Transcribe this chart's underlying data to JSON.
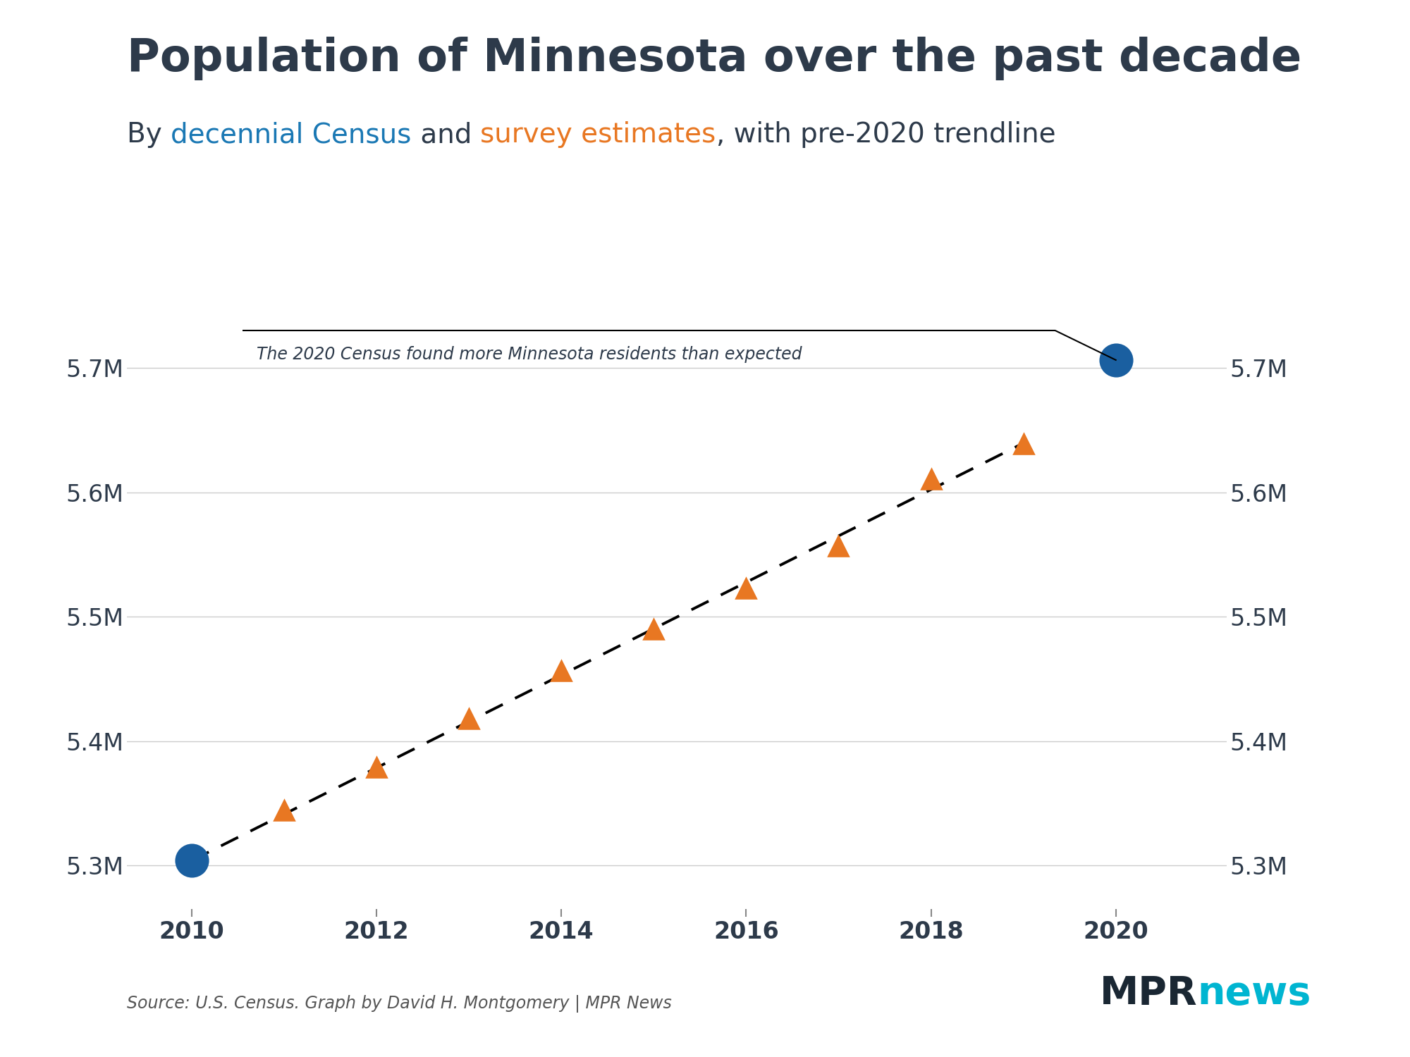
{
  "title": "Population of Minnesota over the past decade",
  "subtitle_parts": [
    {
      "text": "By ",
      "color": "#2d3a4a"
    },
    {
      "text": "decennial Census",
      "color": "#1a78b4"
    },
    {
      "text": " and ",
      "color": "#2d3a4a"
    },
    {
      "text": "survey estimates",
      "color": "#e87722"
    },
    {
      "text": ", with pre-2020 trendline",
      "color": "#2d3a4a"
    }
  ],
  "census_years": [
    2010,
    2020
  ],
  "census_values": [
    5303925,
    5706494
  ],
  "survey_years": [
    2011,
    2012,
    2013,
    2014,
    2015,
    2016,
    2017,
    2018,
    2019
  ],
  "survey_values": [
    5344861,
    5379646,
    5418521,
    5457173,
    5490726,
    5523421,
    5557469,
    5611179,
    5639632
  ],
  "trendline_x": [
    2010,
    2019
  ],
  "trendline_y": [
    5303925,
    5639632
  ],
  "census_color": "#1a5fa0",
  "survey_color": "#e87722",
  "annotation_text": "The 2020 Census found more Minnesota residents than expected",
  "source_text": "Source: U.S. Census. Graph by David H. Montgomery | MPR News",
  "ylim": [
    5265000,
    5775000
  ],
  "xlim": [
    2009.3,
    2021.2
  ],
  "yticks": [
    5300000,
    5400000,
    5500000,
    5600000,
    5700000
  ],
  "ytick_labels": [
    "5.3M",
    "5.4M",
    "5.5M",
    "5.6M",
    "5.7M"
  ],
  "xticks": [
    2010,
    2012,
    2014,
    2016,
    2018,
    2020
  ],
  "background_color": "#ffffff",
  "text_color": "#2d3a4a",
  "mpr_color_dark": "#1a2733",
  "mpr_color_light": "#00b5d1"
}
